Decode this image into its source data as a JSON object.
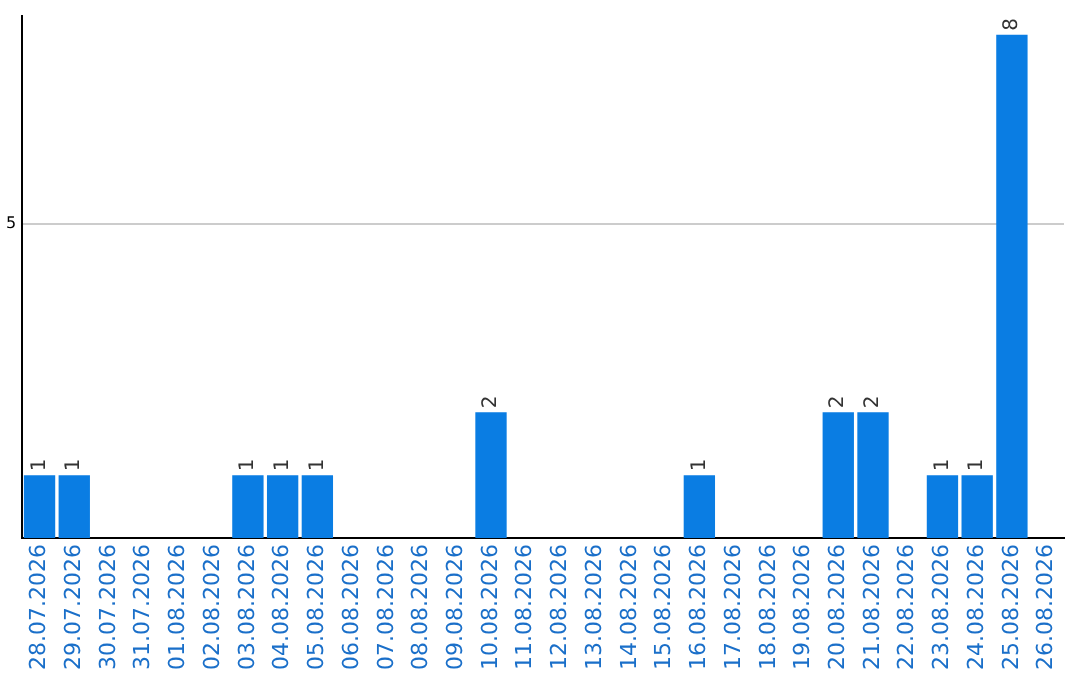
{
  "chart_data": {
    "type": "bar",
    "categories": [
      "28.07.2026",
      "29.07.2026",
      "30.07.2026",
      "31.07.2026",
      "01.08.2026",
      "02.08.2026",
      "03.08.2026",
      "04.08.2026",
      "05.08.2026",
      "06.08.2026",
      "07.08.2026",
      "08.08.2026",
      "09.08.2026",
      "10.08.2026",
      "11.08.2026",
      "12.08.2026",
      "13.08.2026",
      "14.08.2026",
      "15.08.2026",
      "16.08.2026",
      "17.08.2026",
      "18.08.2026",
      "19.08.2026",
      "20.08.2026",
      "21.08.2026",
      "22.08.2026",
      "23.08.2026",
      "24.08.2026",
      "25.08.2026",
      "26.08.2026"
    ],
    "values": [
      1,
      1,
      0,
      0,
      0,
      0,
      1,
      1,
      1,
      0,
      0,
      0,
      0,
      2,
      0,
      0,
      0,
      0,
      0,
      1,
      0,
      0,
      0,
      2,
      2,
      0,
      1,
      1,
      8,
      0
    ],
    "value_labels": [
      "1",
      "1",
      null,
      null,
      null,
      null,
      "1",
      "1",
      "1",
      null,
      null,
      null,
      null,
      "2",
      null,
      null,
      null,
      null,
      null,
      "1",
      null,
      null,
      null,
      "2",
      "2",
      null,
      "1",
      "1",
      "8",
      null
    ],
    "color": "#0a7de3",
    "ylim": [
      0,
      8.3
    ],
    "yticks": [
      5
    ],
    "grid": "y",
    "legend": false
  }
}
